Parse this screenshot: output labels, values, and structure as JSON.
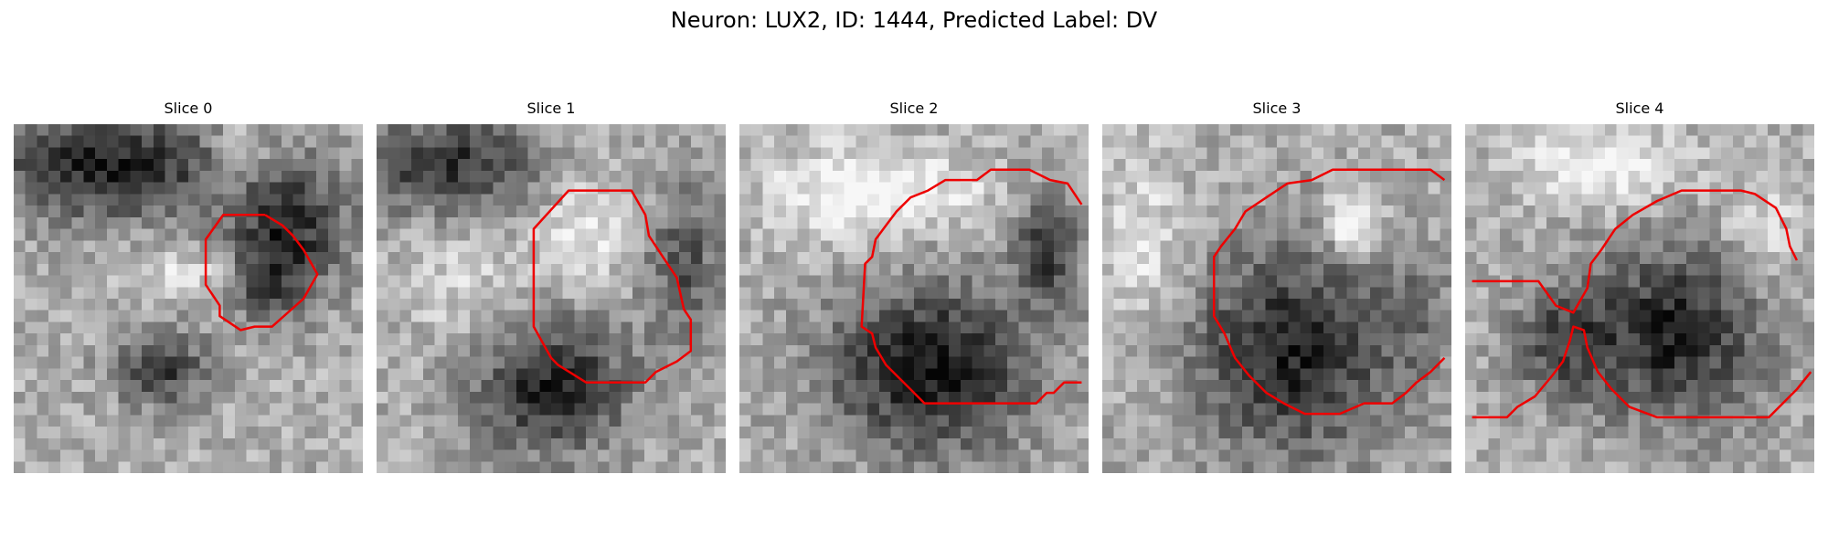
{
  "figure": {
    "title": "Neuron: LUX2, ID: 1444, Predicted Label: DV"
  },
  "panels": [
    {
      "title": "Slice 0"
    },
    {
      "title": "Slice 1"
    },
    {
      "title": "Slice 2"
    },
    {
      "title": "Slice 3"
    },
    {
      "title": "Slice 4"
    }
  ],
  "colors": {
    "contour": "#ee0000"
  }
}
